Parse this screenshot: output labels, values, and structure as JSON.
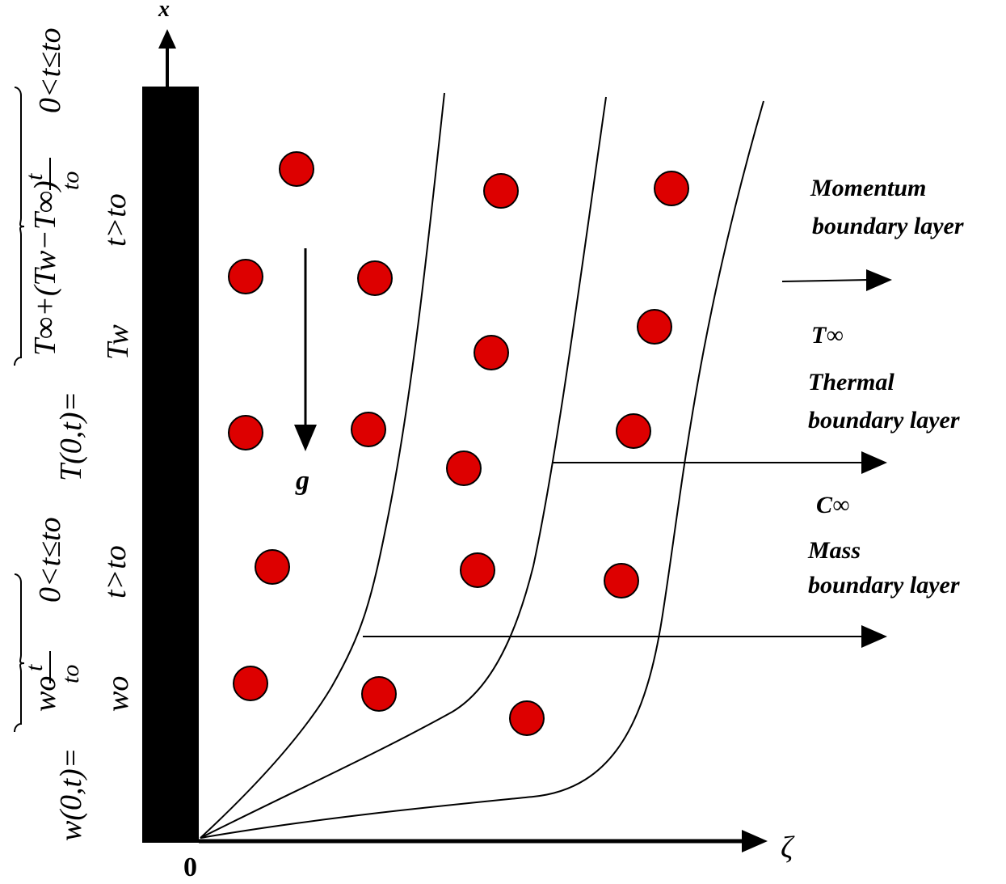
{
  "axes": {
    "x_label": "x",
    "zeta_label": "ζ",
    "origin_label": "0"
  },
  "gravity_label": "g",
  "labels": {
    "momentum_1": "Momentum",
    "momentum_2": "boundary layer",
    "t_inf": "T∞",
    "thermal_1": "Thermal",
    "thermal_2": "boundary layer",
    "c_inf": "C∞",
    "mass_1": "Mass",
    "mass_2": "boundary layer"
  },
  "temperature_bc": {
    "lhs": "T(0,t)=",
    "case1": "T∞+(Tw−T∞)",
    "case1_frac_num": "t",
    "case1_frac_den": "to",
    "case1_cond": "0<t≤to",
    "case2": "Tw",
    "case2_cond": "t>to"
  },
  "velocity_bc": {
    "lhs": "w(0,t)=",
    "case1": "wo",
    "case1_frac_num": "t",
    "case1_frac_den": "to",
    "case1_cond": "0<t≤to",
    "case2": "wo",
    "case2_cond": "t>to"
  },
  "colors": {
    "particle": "#dd0000",
    "wall": "#000000",
    "line": "#000000"
  }
}
